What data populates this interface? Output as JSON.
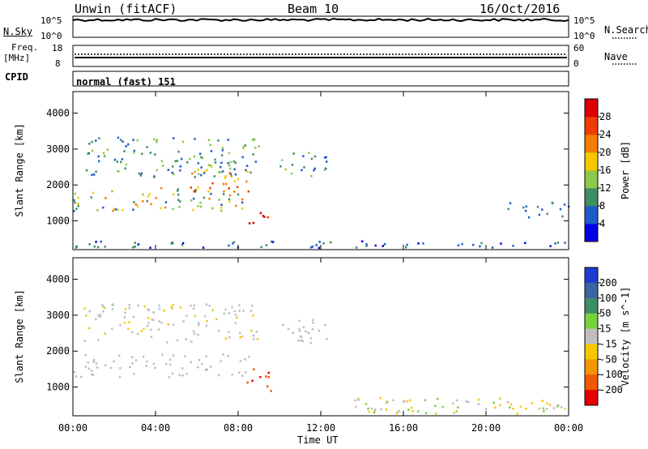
{
  "header": {
    "station": "Unwin (fitACF)",
    "beam": "Beam 10",
    "date": "16/Oct/2016"
  },
  "noise_panel": {
    "left_label": "N.Sky",
    "right_label": "N.Search",
    "left_ticks": [
      "10^5",
      "10^0"
    ],
    "right_ticks": [
      "10^5",
      "10^0"
    ]
  },
  "freq_panel": {
    "left_label_line1": "Freq.",
    "left_label_line2": "[MHz]",
    "right_label": "Nave",
    "left_ticks": [
      "18",
      "8"
    ],
    "right_ticks": [
      "60",
      "0"
    ]
  },
  "cpid": {
    "label": "CPID",
    "value": "normal (fast) 151"
  },
  "time_axis": {
    "ticks": [
      "00:00",
      "04:00",
      "08:00",
      "12:00",
      "16:00",
      "20:00",
      "00:00"
    ],
    "label": "Time UT"
  },
  "colors": {
    "background": "#ffffff",
    "axis": "#000000",
    "ground_scatter": "#bebebe"
  },
  "chart_data": [
    {
      "type": "heatmap",
      "title": "Power",
      "ylabel": "Slant Range [km]",
      "yticks": [
        1000,
        2000,
        3000,
        4000
      ],
      "ylim": [
        200,
        4600
      ],
      "xlim_hours": [
        0,
        24
      ],
      "colorbar": {
        "label": "Power [dB]",
        "ticks": [
          4,
          8,
          12,
          16,
          20,
          24,
          28
        ],
        "range": [
          0,
          32
        ],
        "colors": [
          "#0000e6",
          "#1e5cc8",
          "#3f8f64",
          "#8cc84b",
          "#f5c800",
          "#f57d00",
          "#f03c00",
          "#dc0000"
        ]
      },
      "echo_regions": [
        {
          "desc": "near-range noise band",
          "t_start": 0.0,
          "t_end": 24.0,
          "range_min": 220,
          "range_max": 420,
          "values_db": [
            3,
            6,
            9
          ]
        },
        {
          "desc": "main diagonal band",
          "t_start": 0.0,
          "t_end": 8.5,
          "range_min": 1250,
          "range_max": 1900,
          "values_db": [
            8,
            12,
            16,
            20
          ]
        },
        {
          "desc": "upper band",
          "t_start": 0.5,
          "t_end": 9.0,
          "range_min": 2200,
          "range_max": 3300,
          "values_db": [
            6,
            10,
            14
          ]
        },
        {
          "desc": "strong echo cluster",
          "t_start": 5.5,
          "t_end": 8.5,
          "range_min": 1800,
          "range_max": 2600,
          "values_db": [
            18,
            22,
            26
          ]
        },
        {
          "desc": "very strong echo",
          "t_start": 8.4,
          "t_end": 9.4,
          "range_min": 800,
          "range_max": 1250,
          "values_db": [
            28,
            30
          ]
        },
        {
          "desc": "post-midday patch",
          "t_start": 10.0,
          "t_end": 12.3,
          "range_min": 2200,
          "range_max": 2900,
          "values_db": [
            6,
            10,
            14
          ]
        },
        {
          "desc": "late-day band",
          "t_start": 21.0,
          "t_end": 24.0,
          "range_min": 1050,
          "range_max": 1500,
          "values_db": [
            6,
            10
          ]
        }
      ]
    },
    {
      "type": "heatmap",
      "title": "Velocity",
      "ylabel": "Slant Range [km]",
      "yticks": [
        1000,
        2000,
        3000,
        4000
      ],
      "ylim": [
        200,
        4600
      ],
      "xlim_hours": [
        0,
        24
      ],
      "colorbar": {
        "label": "Velocity [m s^-1]",
        "ticks": [
          200,
          100,
          50,
          15,
          -15,
          -50,
          -100,
          -200
        ],
        "range": [
          -250,
          250
        ],
        "colors": [
          "#1e3cd2",
          "#3c64a0",
          "#3f8f64",
          "#78d23c",
          "#bebebe",
          "#f5c800",
          "#f59600",
          "#f05a00",
          "#e60000"
        ]
      },
      "echo_regions": [
        {
          "desc": "ground scatter band",
          "t_start": 0.0,
          "t_end": 8.5,
          "range_min": 1250,
          "range_max": 1900,
          "values_ms": [
            -10,
            0,
            10
          ]
        },
        {
          "desc": "upper band",
          "t_start": 0.5,
          "t_end": 9.0,
          "range_min": 2200,
          "range_max": 3300,
          "values_ms": [
            -40,
            -15,
            0
          ]
        },
        {
          "desc": "strong negative-velocity echo",
          "t_start": 8.4,
          "t_end": 9.6,
          "range_min": 800,
          "range_max": 1500,
          "values_ms": [
            -200,
            -150
          ]
        },
        {
          "desc": "post-midday patch",
          "t_start": 10.0,
          "t_end": 12.3,
          "range_min": 2200,
          "range_max": 2900,
          "values_ms": [
            -10,
            0
          ]
        },
        {
          "desc": "near-range band",
          "t_start": 13.5,
          "t_end": 24.0,
          "range_min": 220,
          "range_max": 700,
          "values_ms": [
            20,
            40,
            -30
          ]
        }
      ]
    }
  ]
}
